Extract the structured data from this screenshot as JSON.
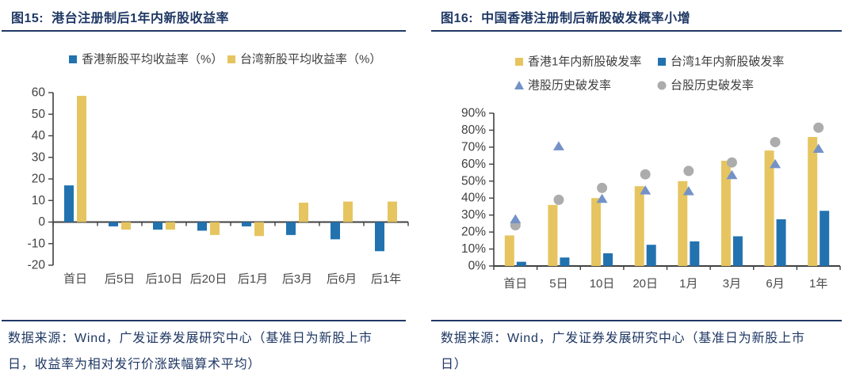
{
  "panels": [
    {
      "title_prefix": "图15:",
      "title_text": "港台注册制后1年内新股收益率",
      "source_lines": [
        "数据来源：Wind，广发证券发展研究中心（基准日为新股上市",
        "日，收益率为相对发行价涨跌幅算术平均）"
      ]
    },
    {
      "title_prefix": "图16:",
      "title_text": "中国香港注册制后新股破发概率小增",
      "source_lines": [
        "数据来源：Wind，广发证券发展研究中心（基准日为新股上市",
        "日）"
      ]
    }
  ],
  "colors": {
    "navy": "#1F3864",
    "blue_bar": "#2272B0",
    "yellow_bar": "#E6C560",
    "triangle": "#7492C8",
    "circle": "#ACACAC",
    "axis": "#404040",
    "tick_text": "#404040",
    "category_text": "#4A4A4A"
  },
  "chart_data": [
    {
      "type": "bar",
      "title": "港台注册制后1年内新股收益率",
      "categories": [
        "首日",
        "后5日",
        "后10日",
        "后20日",
        "后1月",
        "后3月",
        "后6月",
        "后1年"
      ],
      "series": [
        {
          "name": "香港新股平均收益率（%）",
          "kind": "bar",
          "color": "#2272B0",
          "values": [
            17,
            -2,
            -3.5,
            -4,
            -2,
            -6,
            -8,
            -13.5
          ]
        },
        {
          "name": "台湾新股平均收益率（%）",
          "kind": "bar",
          "color": "#E6C560",
          "values": [
            58.5,
            -3.5,
            -3.5,
            -6,
            -6.5,
            9,
            9.5,
            9.5
          ]
        }
      ],
      "xlabel": "",
      "ylabel": "",
      "ylim": [
        -20,
        60
      ],
      "ytick_step": 10,
      "grid": false,
      "legend_position": "top"
    },
    {
      "type": "bar",
      "title": "中国香港注册制后新股破发概率小增",
      "categories": [
        "首日",
        "5日",
        "10日",
        "20日",
        "1月",
        "3月",
        "6月",
        "1年"
      ],
      "series": [
        {
          "name": "香港1年内新股破发率",
          "kind": "bar",
          "color": "#E6C560",
          "values": [
            18,
            36,
            40,
            47,
            50,
            62,
            68,
            76
          ]
        },
        {
          "name": "台湾1年内新股破发率",
          "kind": "bar",
          "color": "#2272B0",
          "values": [
            2.5,
            5,
            7.5,
            12.5,
            14.5,
            17.5,
            27.5,
            32.5
          ]
        },
        {
          "name": "港股历史破发率",
          "kind": "triangle",
          "color": "#7492C8",
          "values": [
            27.5,
            70.5,
            39.5,
            44.5,
            44,
            53.5,
            60,
            69
          ]
        },
        {
          "name": "台股历史破发率",
          "kind": "circle",
          "color": "#ACACAC",
          "values": [
            24,
            39,
            46,
            54,
            56,
            61,
            73,
            81.5
          ]
        }
      ],
      "xlabel": "",
      "ylabel": "",
      "ylim": [
        0,
        90
      ],
      "ytick_step": 10,
      "y_format": "percent",
      "grid": false,
      "legend_position": "top"
    }
  ]
}
